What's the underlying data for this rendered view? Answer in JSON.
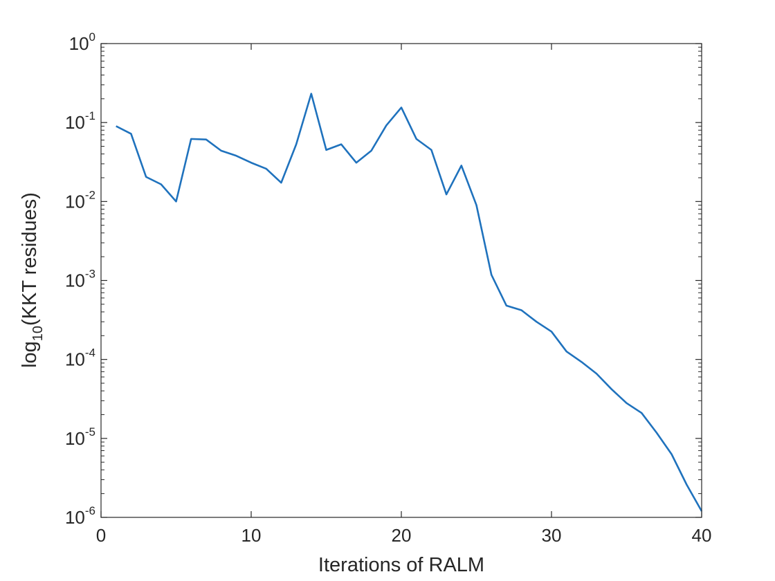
{
  "chart_data": {
    "type": "line",
    "xlabel": "Iterations of RALM",
    "ylabel": {
      "prefix": "log",
      "subscript": "10",
      "suffix": "(KKT residues)"
    },
    "xlim": [
      0,
      40
    ],
    "ylim": [
      1e-06,
      1
    ],
    "yscale": "log",
    "grid": false,
    "x_ticks": [
      0,
      10,
      20,
      30,
      40
    ],
    "x_tick_labels": [
      "0",
      "10",
      "20",
      "30",
      "40"
    ],
    "y_ticks": [
      {
        "value": 1e-06,
        "base": "10",
        "exponent": "-6"
      },
      {
        "value": 1e-05,
        "base": "10",
        "exponent": "-5"
      },
      {
        "value": 0.0001,
        "base": "10",
        "exponent": "-4"
      },
      {
        "value": 0.001,
        "base": "10",
        "exponent": "-3"
      },
      {
        "value": 0.01,
        "base": "10",
        "exponent": "-2"
      },
      {
        "value": 0.1,
        "base": "10",
        "exponent": "-1"
      },
      {
        "value": 1,
        "base": "10",
        "exponent": "0"
      }
    ],
    "colors": {
      "line": "#1f72bd",
      "axes": "#262626"
    },
    "series": [
      {
        "x": [
          1,
          2,
          3,
          4,
          5,
          6,
          7,
          8,
          9,
          10,
          11,
          12,
          13,
          14,
          15,
          16,
          17,
          18,
          19,
          20,
          21,
          22,
          23,
          24,
          25,
          26,
          27,
          28,
          29,
          30,
          31,
          32,
          33,
          34,
          35,
          36,
          37,
          38,
          39,
          40
        ],
        "y": [
          0.09,
          0.072,
          0.0205,
          0.0165,
          0.01,
          0.062,
          0.061,
          0.044,
          0.038,
          0.031,
          0.026,
          0.0173,
          0.053,
          0.232,
          0.045,
          0.053,
          0.031,
          0.044,
          0.092,
          0.155,
          0.062,
          0.045,
          0.0123,
          0.0285,
          0.009,
          0.00118,
          0.00048,
          0.00042,
          0.0003,
          0.000225,
          0.000126,
          9.3e-05,
          6.6e-05,
          4.2e-05,
          2.8e-05,
          2.1e-05,
          1.18e-05,
          6.3e-06,
          2.6e-06,
          1.2e-06
        ]
      }
    ]
  }
}
